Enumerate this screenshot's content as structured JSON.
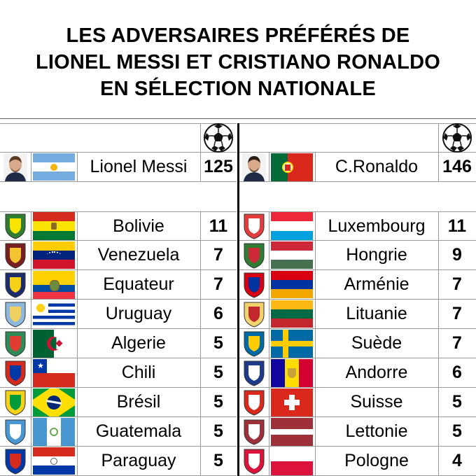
{
  "title": {
    "line1": "LES ADVERSAIRES PRÉFÉRÉS DE",
    "line2": "LIONEL MESSI ET CRISTIANO RONALDO",
    "line3": "EN SÉLECTION NATIONALE"
  },
  "messi": {
    "name": "Lionel Messi",
    "total": "125",
    "country_flag_icon": "argentina-flag-icon",
    "opponents": [
      {
        "name": "Bolivie",
        "goals": "11",
        "flag": "bolivia"
      },
      {
        "name": "Venezuela",
        "goals": "7",
        "flag": "venezuela"
      },
      {
        "name": "Equateur",
        "goals": "7",
        "flag": "ecuador"
      },
      {
        "name": "Uruguay",
        "goals": "6",
        "flag": "uruguay"
      },
      {
        "name": "Algerie",
        "goals": "5",
        "flag": "algeria"
      },
      {
        "name": "Chili",
        "goals": "5",
        "flag": "chile"
      },
      {
        "name": "Brésil",
        "goals": "5",
        "flag": "brazil"
      },
      {
        "name": "Guatemala",
        "goals": "5",
        "flag": "guatemala"
      },
      {
        "name": "Paraguay",
        "goals": "5",
        "flag": "paraguay"
      }
    ]
  },
  "ronaldo": {
    "name": "C.Ronaldo",
    "total": "146",
    "country_flag_icon": "portugal-flag-icon",
    "opponents": [
      {
        "name": "Luxembourg",
        "goals": "11",
        "flag": "luxembourg"
      },
      {
        "name": "Hongrie",
        "goals": "9",
        "flag": "hungary"
      },
      {
        "name": "Arménie",
        "goals": "7",
        "flag": "armenia"
      },
      {
        "name": "Lituanie",
        "goals": "7",
        "flag": "lithuania"
      },
      {
        "name": "Suède",
        "goals": "7",
        "flag": "sweden"
      },
      {
        "name": "Andorre",
        "goals": "6",
        "flag": "andorra"
      },
      {
        "name": "Suisse",
        "goals": "5",
        "flag": "switzerland"
      },
      {
        "name": "Lettonie",
        "goals": "5",
        "flag": "latvia"
      },
      {
        "name": "Pologne",
        "goals": "4",
        "flag": "poland"
      }
    ]
  },
  "icons": {
    "goals_header": "soccer-ball-icon"
  },
  "colors": {
    "border": "#9a9a9a",
    "divider": "#000000"
  }
}
